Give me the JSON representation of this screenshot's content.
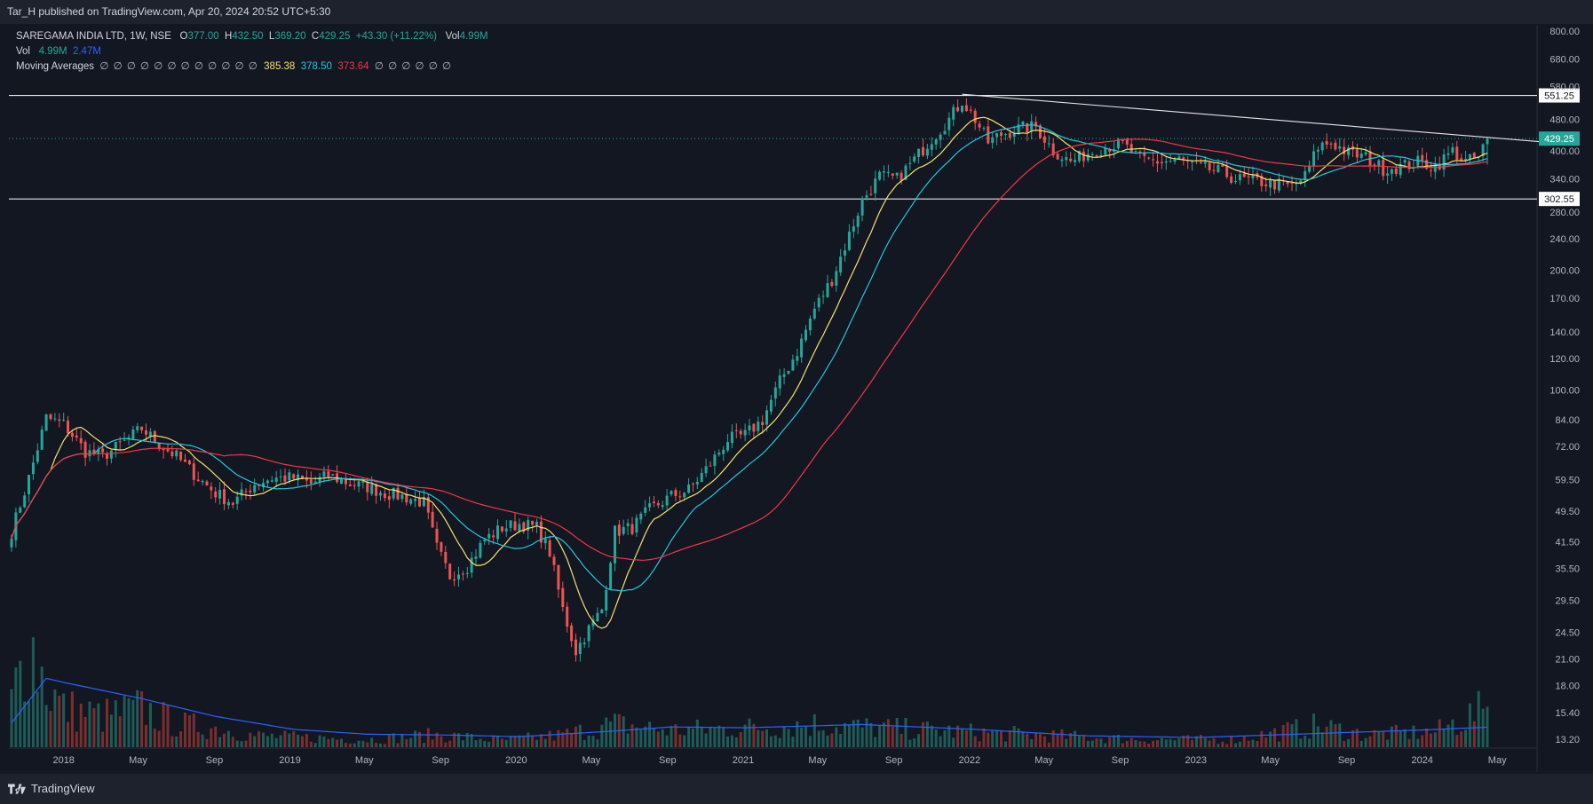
{
  "header": {
    "published": "Tar_H published on TradingView.com, Apr 20, 2024 20:52 UTC+5:30"
  },
  "legend": {
    "symbol": "SAREGAMA INDIA LTD, 1W, NSE",
    "o_label": "O",
    "o_value": "377.00",
    "h_label": "H",
    "h_value": "432.50",
    "l_label": "L",
    "l_value": "369.20",
    "c_label": "C",
    "c_value": "429.25",
    "change": "+43.30 (+11.22%)",
    "vol_label": "Vol",
    "vol_value": "4.99M",
    "vol2_label": "Vol",
    "vol2_value1": "4.99M",
    "vol2_value2": "2.47M",
    "ma_label": "Moving Averages",
    "ma_placeholders_a": "∅ ∅ ∅ ∅ ∅ ∅ ∅ ∅ ∅ ∅ ∅ ∅",
    "ma_v1": "385.38",
    "ma_v2": "378.50",
    "ma_v3": "373.64",
    "ma_placeholders_b": "∅ ∅ ∅ ∅ ∅ ∅"
  },
  "footer": {
    "brand": "TradingView"
  },
  "colors": {
    "bg": "#131722",
    "up": "#26a69a",
    "down": "#ef5350",
    "ma1": "#f7e16d",
    "ma2": "#26c6da",
    "ma3": "#f23645",
    "vol_ma": "#2962ff"
  },
  "chart_data": {
    "type": "candlestick",
    "scale": "log",
    "ylim": [
      12.6,
      830
    ],
    "y_ticks": [
      "800.00",
      "680.00",
      "580.00",
      "480.00",
      "400.00",
      "340.00",
      "280.00",
      "240.00",
      "200.00",
      "170.00",
      "140.00",
      "120.00",
      "100.00",
      "84.00",
      "72.00",
      "59.50",
      "49.50",
      "41.50",
      "35.50",
      "29.50",
      "24.50",
      "21.00",
      "18.00",
      "15.40",
      "13.20"
    ],
    "x_ticks": [
      "2018",
      "May",
      "Sep",
      "2019",
      "May",
      "Sep",
      "2020",
      "May",
      "Sep",
      "2021",
      "May",
      "Sep",
      "2022",
      "May",
      "Sep",
      "2023",
      "May",
      "Sep",
      "2024",
      "May"
    ],
    "x_tick_dates": [
      "2018-01-01",
      "2018-05-01",
      "2018-09-01",
      "2019-01-01",
      "2019-05-01",
      "2019-09-01",
      "2020-01-01",
      "2020-05-01",
      "2020-09-01",
      "2021-01-01",
      "2021-05-01",
      "2021-09-01",
      "2022-01-01",
      "2022-05-01",
      "2022-09-01",
      "2023-01-01",
      "2023-05-01",
      "2023-09-01",
      "2024-01-01",
      "2024-05-01"
    ],
    "last_price": "429.25",
    "horizontal_lines": [
      {
        "value": 551.25,
        "label": "551.25"
      },
      {
        "value": 302.55,
        "label": "302.55"
      }
    ],
    "trendline": [
      {
        "date": "2021-12-20",
        "value": 555
      },
      {
        "date": "2024-05-13",
        "value": 418
      }
    ],
    "price_anchors": [
      [
        "2017-10-09",
        44
      ],
      [
        "2017-11-06",
        60
      ],
      [
        "2017-12-04",
        85
      ],
      [
        "2018-01-01",
        82
      ],
      [
        "2018-02-05",
        70
      ],
      [
        "2018-03-05",
        68
      ],
      [
        "2018-04-09",
        74
      ],
      [
        "2018-05-07",
        80
      ],
      [
        "2018-06-04",
        73
      ],
      [
        "2018-07-02",
        68
      ],
      [
        "2018-08-06",
        60
      ],
      [
        "2018-09-03",
        55
      ],
      [
        "2018-10-01",
        52
      ],
      [
        "2018-11-05",
        58
      ],
      [
        "2018-12-03",
        60
      ],
      [
        "2019-01-07",
        60
      ],
      [
        "2019-02-04",
        58
      ],
      [
        "2019-03-04",
        61
      ],
      [
        "2019-04-08",
        58
      ],
      [
        "2019-05-06",
        57
      ],
      [
        "2019-06-03",
        55
      ],
      [
        "2019-07-01",
        54
      ],
      [
        "2019-08-05",
        52
      ],
      [
        "2019-08-26",
        40
      ],
      [
        "2019-09-16",
        34
      ],
      [
        "2019-10-14",
        36
      ],
      [
        "2019-11-11",
        42
      ],
      [
        "2019-12-09",
        45
      ],
      [
        "2020-01-06",
        46
      ],
      [
        "2020-02-03",
        45
      ],
      [
        "2020-02-24",
        39
      ],
      [
        "2020-03-16",
        28
      ],
      [
        "2020-04-06",
        22
      ],
      [
        "2020-04-27",
        25
      ],
      [
        "2020-05-18",
        28
      ],
      [
        "2020-06-08",
        44
      ],
      [
        "2020-07-06",
        45
      ],
      [
        "2020-08-03",
        50
      ],
      [
        "2020-09-07",
        54
      ],
      [
        "2020-10-05",
        56
      ],
      [
        "2020-11-02",
        63
      ],
      [
        "2020-12-07",
        75
      ],
      [
        "2021-01-04",
        77
      ],
      [
        "2021-02-01",
        84
      ],
      [
        "2021-03-01",
        105
      ],
      [
        "2021-03-29",
        125
      ],
      [
        "2021-04-26",
        160
      ],
      [
        "2021-05-24",
        190
      ],
      [
        "2021-06-14",
        230
      ],
      [
        "2021-07-12",
        300
      ],
      [
        "2021-08-09",
        345
      ],
      [
        "2021-09-06",
        340
      ],
      [
        "2021-10-04",
        380
      ],
      [
        "2021-11-01",
        430
      ],
      [
        "2021-11-29",
        480
      ],
      [
        "2021-12-20",
        535
      ],
      [
        "2022-01-10",
        480
      ],
      [
        "2022-01-31",
        420
      ],
      [
        "2022-02-21",
        440
      ],
      [
        "2022-03-21",
        455
      ],
      [
        "2022-04-18",
        460
      ],
      [
        "2022-05-16",
        400
      ],
      [
        "2022-06-13",
        375
      ],
      [
        "2022-07-11",
        395
      ],
      [
        "2022-08-08",
        410
      ],
      [
        "2022-09-05",
        415
      ],
      [
        "2022-10-03",
        380
      ],
      [
        "2022-11-07",
        375
      ],
      [
        "2022-12-05",
        380
      ],
      [
        "2023-01-02",
        365
      ],
      [
        "2023-02-06",
        355
      ],
      [
        "2023-03-06",
        340
      ],
      [
        "2023-04-10",
        335
      ],
      [
        "2023-05-08",
        330
      ],
      [
        "2023-06-05",
        325
      ],
      [
        "2023-06-26",
        345
      ],
      [
        "2023-07-17",
        410
      ],
      [
        "2023-08-07",
        420
      ],
      [
        "2023-09-04",
        395
      ],
      [
        "2023-10-02",
        385
      ],
      [
        "2023-10-30",
        360
      ],
      [
        "2023-11-27",
        365
      ],
      [
        "2023-12-25",
        375
      ],
      [
        "2024-01-22",
        365
      ],
      [
        "2024-02-19",
        400
      ],
      [
        "2024-03-11",
        375
      ],
      [
        "2024-04-01",
        385
      ],
      [
        "2024-04-15",
        429.25
      ]
    ],
    "volume_ylim": [
      0,
      23
    ],
    "volume_anchors": [
      [
        "2017-10-09",
        6
      ],
      [
        "2017-11-06",
        14
      ],
      [
        "2017-12-04",
        8
      ],
      [
        "2018-01-01",
        5
      ],
      [
        "2018-03-05",
        4
      ],
      [
        "2018-05-07",
        5
      ],
      [
        "2018-07-02",
        3
      ],
      [
        "2018-09-03",
        2.5
      ],
      [
        "2018-11-05",
        1.5
      ],
      [
        "2019-01-07",
        1.3
      ],
      [
        "2019-05-06",
        1
      ],
      [
        "2019-08-26",
        1.6
      ],
      [
        "2019-12-09",
        0.9
      ],
      [
        "2020-03-16",
        1.6
      ],
      [
        "2020-06-08",
        3
      ],
      [
        "2020-09-07",
        2.2
      ],
      [
        "2021-01-04",
        2.5
      ],
      [
        "2021-04-26",
        3
      ],
      [
        "2021-07-12",
        2.6
      ],
      [
        "2021-12-20",
        2
      ],
      [
        "2022-05-16",
        1.5
      ],
      [
        "2022-10-03",
        1
      ],
      [
        "2023-03-06",
        1
      ],
      [
        "2023-07-17",
        2.8
      ],
      [
        "2023-10-02",
        1.6
      ],
      [
        "2024-01-22",
        2
      ],
      [
        "2024-04-15",
        4.99
      ]
    ],
    "volume_ma_anchors": [
      [
        "2017-10-09",
        3
      ],
      [
        "2017-12-04",
        8.5
      ],
      [
        "2018-01-01",
        8
      ],
      [
        "2018-05-07",
        6
      ],
      [
        "2018-09-03",
        3.8
      ],
      [
        "2019-01-07",
        2.2
      ],
      [
        "2019-05-06",
        1.6
      ],
      [
        "2019-09-16",
        1.5
      ],
      [
        "2020-01-06",
        1.3
      ],
      [
        "2020-06-08",
        2
      ],
      [
        "2020-09-07",
        2.5
      ],
      [
        "2021-01-04",
        2.4
      ],
      [
        "2021-07-12",
        2.8
      ],
      [
        "2022-01-10",
        2.2
      ],
      [
        "2022-07-11",
        1.4
      ],
      [
        "2023-01-02",
        1.2
      ],
      [
        "2023-07-17",
        1.7
      ],
      [
        "2023-12-25",
        2.1
      ],
      [
        "2024-04-15",
        2.47
      ]
    ],
    "moving_averages": [
      {
        "period": 10,
        "color": "#f7e16d",
        "last": 385.38
      },
      {
        "period": 20,
        "color": "#26c6da",
        "last": 378.5
      },
      {
        "period": 50,
        "color": "#f23645",
        "last": 373.64
      }
    ]
  }
}
